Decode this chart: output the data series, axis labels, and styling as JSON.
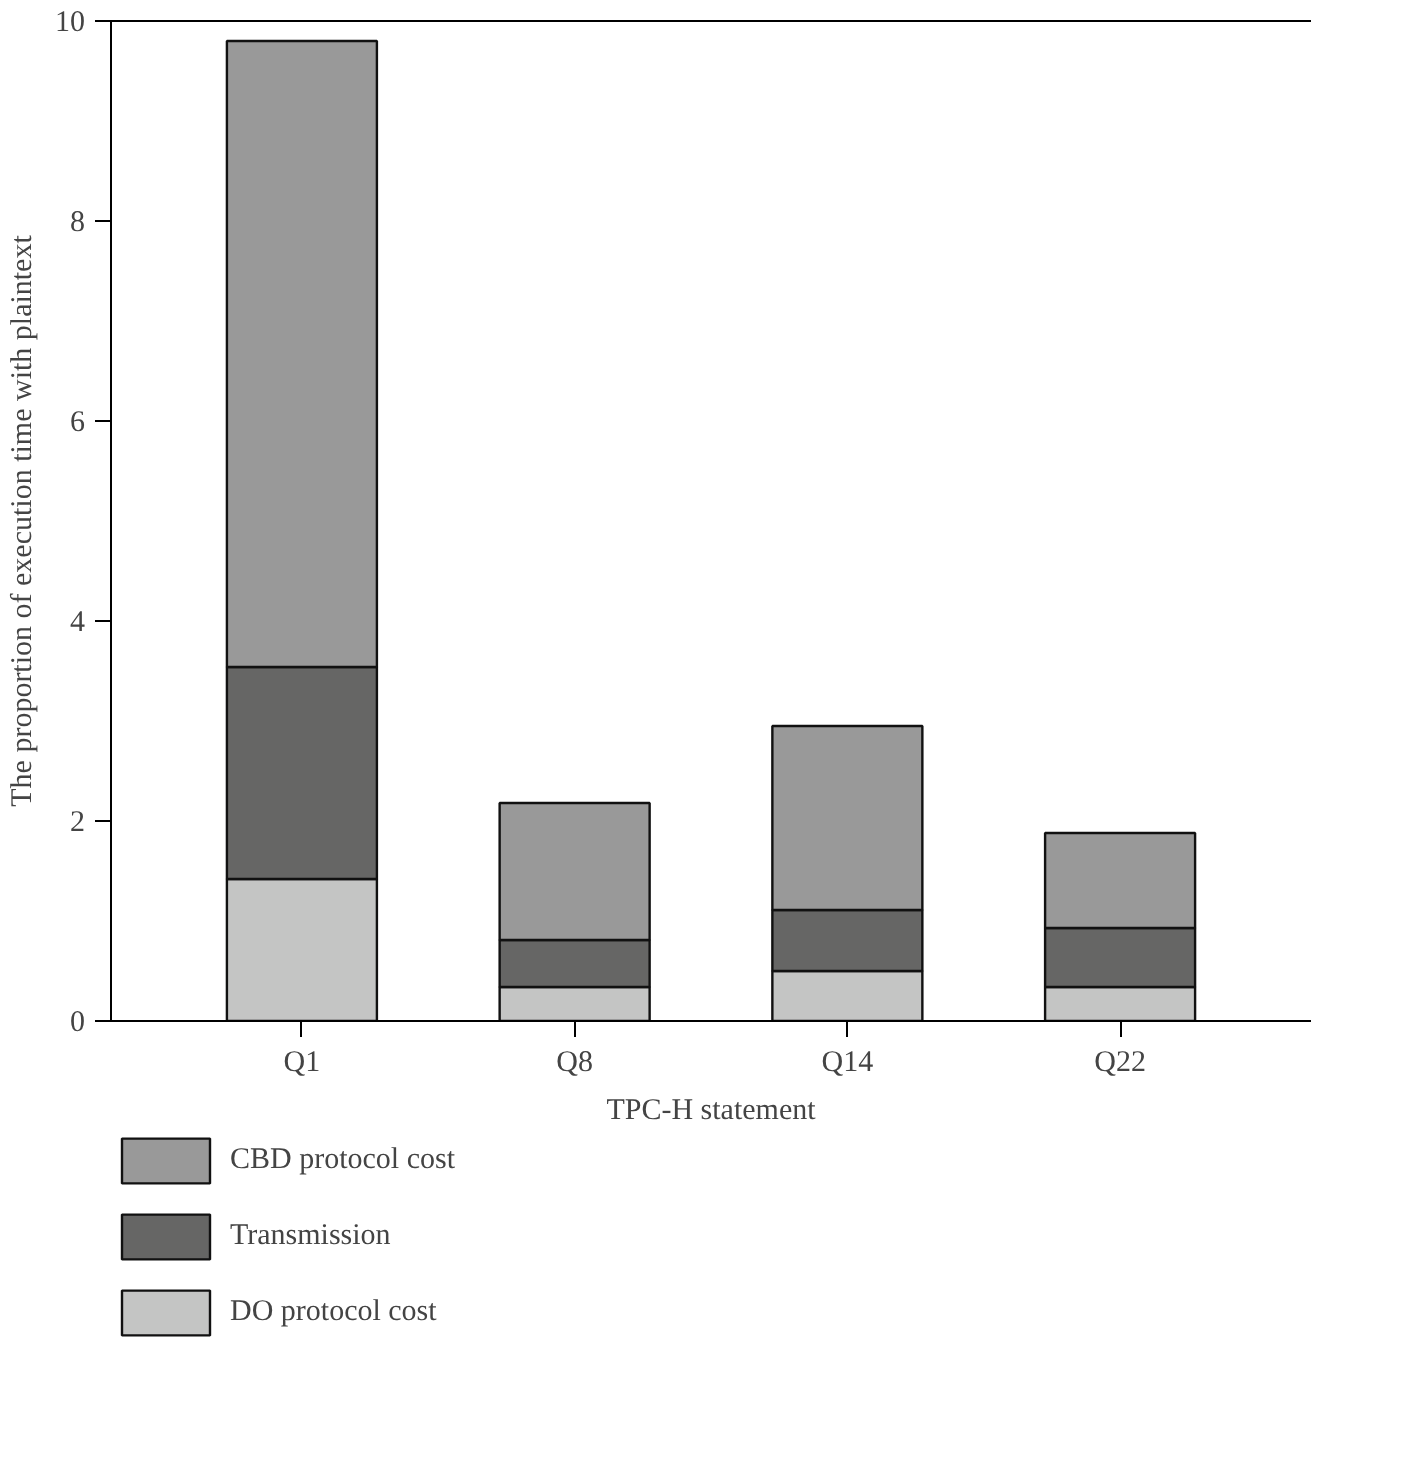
{
  "chart_data": {
    "type": "bar",
    "stacked": true,
    "xlabel": "TPC-H statement",
    "ylabel": "The proportion of execution time with plaintext",
    "categories": [
      "Q1",
      "Q8",
      "Q14",
      "Q22"
    ],
    "series": [
      {
        "name": "DO protocol cost",
        "color": "#c4c5c4",
        "values": [
          1.42,
          0.34,
          0.5,
          0.34
        ]
      },
      {
        "name": "Transmission",
        "color": "#666665",
        "values": [
          2.12,
          0.47,
          0.61,
          0.59
        ]
      },
      {
        "name": "CBD protocol cost",
        "color": "#999999",
        "values": [
          6.26,
          1.37,
          1.84,
          0.95
        ]
      }
    ],
    "ylim": [
      0,
      10
    ],
    "yticks": [
      0,
      2,
      4,
      6,
      8,
      10
    ],
    "grid": false,
    "legend": "bottom"
  }
}
